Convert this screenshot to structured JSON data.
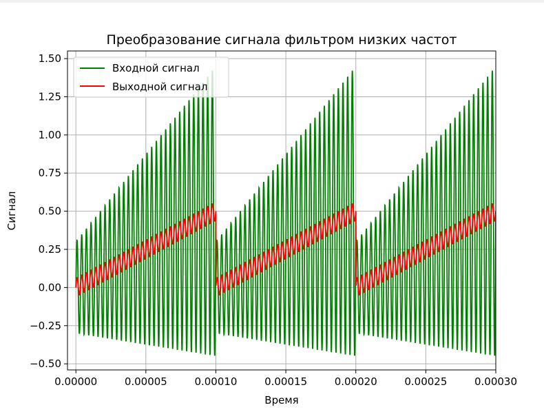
{
  "chart_data": {
    "type": "line",
    "title": "Преобразование сигнала фильтром низких частот",
    "xlabel": "Время",
    "ylabel": "Сигнал",
    "xlim": [
      -6e-06,
      0.0003
    ],
    "ylim": [
      -0.54,
      1.55
    ],
    "xticks": [
      0,
      5e-05,
      0.0001,
      0.00015,
      0.0002,
      0.00025,
      0.0003
    ],
    "xtick_labels": [
      "0.00000",
      "0.00005",
      "0.00010",
      "0.00015",
      "0.00020",
      "0.00025",
      "0.00030"
    ],
    "yticks": [
      -0.5,
      -0.25,
      0,
      0.25,
      0.5,
      0.75,
      1.0,
      1.25,
      1.5
    ],
    "ytick_labels": [
      "−0.50",
      "−0.25",
      "0.00",
      "0.25",
      "0.50",
      "0.75",
      "1.00",
      "1.25",
      "1.50"
    ],
    "grid": true,
    "legend_position": "top-left",
    "series": [
      {
        "name": "Входной сигнал",
        "color": "#008000",
        "description_of_shape": "sawtooth ramp 0→~0.5 with period 0.0001 plus high-frequency sinusoid amplitude ~0.5 growing",
        "sawtooth_period": 0.0001,
        "sawtooth_amplitude": 0.5,
        "sine_frequency": 300000,
        "sine_amplitude_start": 0.3,
        "sine_amplitude_end": 0.95,
        "x_start": 0,
        "x_end": 0.0003,
        "n_points": 3000
      },
      {
        "name": "Выходной сигнал",
        "color": "#ff0000",
        "sawtooth_period": 0.0001,
        "sawtooth_amplitude": 0.5,
        "sine_frequency": 300000,
        "sine_amplitude_start": 0.06,
        "sine_amplitude_end": 0.06,
        "x_start": 0,
        "x_end": 0.0003,
        "n_points": 3000
      }
    ]
  }
}
